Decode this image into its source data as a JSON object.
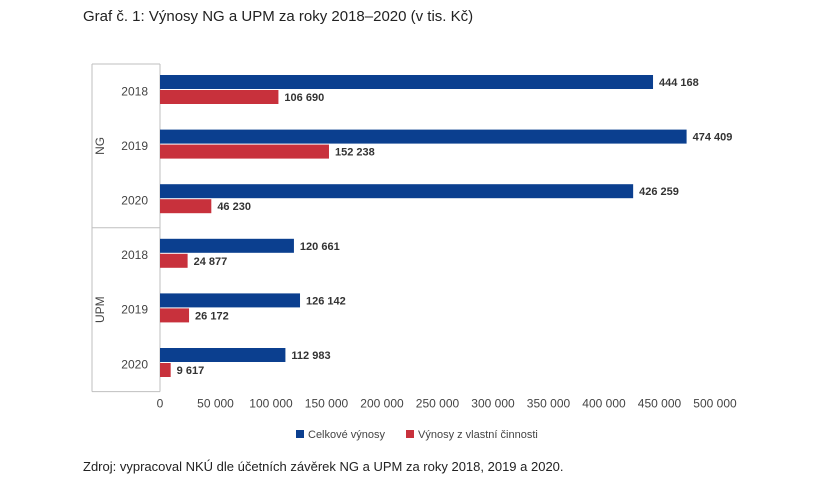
{
  "title": "Graf č. 1: Výnosy NG a UPM za roky 2018–2020 (v tis. Kč)",
  "source": "Zdroj: vypracoval NKÚ dle účetních závěrek NG a UPM za roky 2018, 2019 a 2020.",
  "colors": {
    "celkove": "#0b3f8f",
    "vlastni": "#c8313c",
    "axis": "#bfbfbf"
  },
  "chart_data": {
    "type": "bar",
    "orientation": "horizontal",
    "groups": [
      {
        "name": "NG",
        "categories": [
          "2018",
          "2019",
          "2020"
        ]
      },
      {
        "name": "UPM",
        "categories": [
          "2018",
          "2019",
          "2020"
        ]
      }
    ],
    "series": [
      {
        "name": "Celkové výnosy",
        "values": [
          444168,
          474409,
          426259,
          120661,
          126142,
          112983
        ],
        "labels": [
          "444 168",
          "474 409",
          "426 259",
          "120 661",
          "126 142",
          "112 983"
        ]
      },
      {
        "name": "Výnosy z vlastní činnosti",
        "values": [
          106690,
          152238,
          46230,
          24877,
          26172,
          9617
        ],
        "labels": [
          "106 690",
          "152 238",
          "46 230",
          "24 877",
          "26 172",
          "9 617"
        ]
      }
    ],
    "xlim": [
      0,
      500000
    ],
    "xticks": [
      0,
      50000,
      100000,
      150000,
      200000,
      250000,
      300000,
      350000,
      400000,
      450000,
      500000
    ],
    "xtick_labels": [
      "0",
      "50 000",
      "100 000",
      "150 000",
      "200 000",
      "250 000",
      "300 000",
      "350 000",
      "400 000",
      "450 000",
      "500 000"
    ],
    "grid": false,
    "legend_position": "bottom"
  }
}
